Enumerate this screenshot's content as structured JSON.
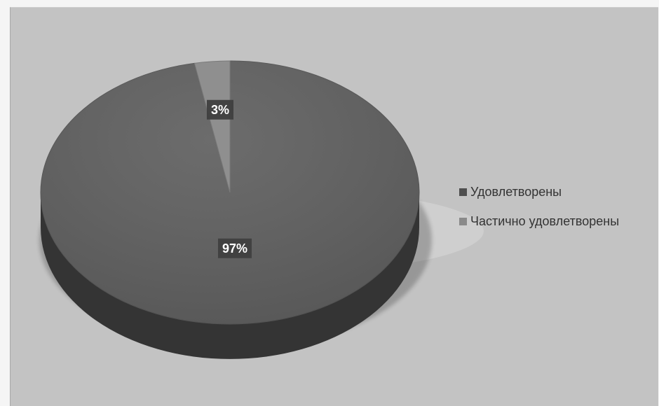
{
  "chart_data": {
    "type": "pie",
    "categories": [
      "Удовлетворены",
      "Частично удовлетворены"
    ],
    "values": [
      97,
      3
    ],
    "data_labels": [
      "97%",
      "3%"
    ],
    "colors": [
      "#5f5f5f",
      "#8f8f8f"
    ],
    "title": "",
    "legend_position": "right",
    "style": "3d"
  },
  "legend": {
    "items": [
      {
        "label": "Удовлетворены",
        "color": "#4f4f4f"
      },
      {
        "label": "Частично удовлетворены",
        "color": "#8a8a8a"
      }
    ]
  }
}
